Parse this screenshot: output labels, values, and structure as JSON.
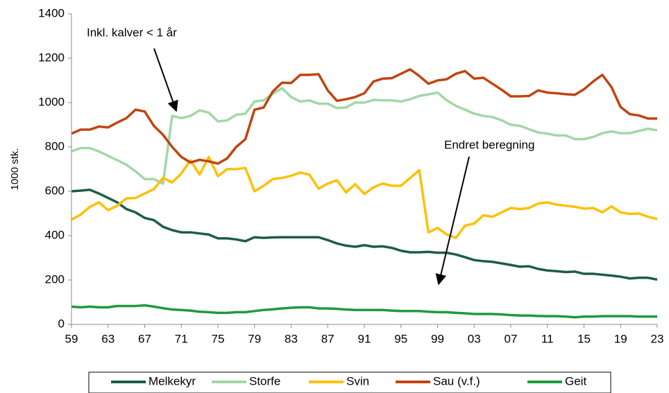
{
  "chart_data": {
    "type": "line",
    "y_label": "1000 stk.",
    "annotations": [
      "Inkl. kalver < 1 år",
      "Endret beregning"
    ],
    "categories": [
      "59",
      null,
      null,
      null,
      "63",
      null,
      null,
      null,
      "67",
      null,
      null,
      null,
      "71",
      null,
      null,
      null,
      "75",
      null,
      null,
      null,
      "79",
      null,
      null,
      null,
      "83",
      null,
      null,
      null,
      "87",
      null,
      null,
      null,
      "91",
      null,
      null,
      null,
      "95",
      null,
      null,
      null,
      "99",
      null,
      null,
      null,
      "03",
      null,
      null,
      null,
      "07",
      null,
      null,
      null,
      "11",
      null,
      null,
      null,
      "15",
      null,
      null,
      null,
      "19",
      null,
      null,
      null,
      "23"
    ],
    "ylim": [
      0,
      1400
    ],
    "yticks": [
      0,
      200,
      400,
      600,
      800,
      1000,
      1200,
      1400
    ],
    "series": [
      {
        "name": "Melkekyr",
        "color": "#1d5c47",
        "values": [
          600,
          603,
          607,
          590,
          570,
          550,
          520,
          505,
          480,
          470,
          440,
          425,
          415,
          415,
          410,
          405,
          388,
          388,
          383,
          375,
          393,
          390,
          392,
          393,
          393,
          393,
          393,
          393,
          380,
          365,
          355,
          350,
          357,
          350,
          352,
          345,
          332,
          325,
          325,
          327,
          323,
          323,
          315,
          303,
          290,
          285,
          282,
          275,
          268,
          260,
          262,
          250,
          243,
          240,
          236,
          238,
          228,
          228,
          224,
          220,
          215,
          207,
          210,
          210,
          202
        ]
      },
      {
        "name": "Storfe",
        "color": "#a3d6a7",
        "values": [
          780,
          795,
          795,
          780,
          760,
          740,
          720,
          690,
          655,
          655,
          635,
          940,
          930,
          940,
          965,
          955,
          915,
          920,
          945,
          950,
          1005,
          1010,
          1040,
          1065,
          1025,
          1005,
          1010,
          995,
          995,
          975,
          978,
          1000,
          1000,
          1012,
          1010,
          1010,
          1005,
          1015,
          1030,
          1037,
          1045,
          1010,
          985,
          968,
          950,
          940,
          935,
          920,
          900,
          895,
          880,
          865,
          860,
          852,
          852,
          835,
          835,
          845,
          862,
          870,
          862,
          862,
          872,
          882,
          875
        ]
      },
      {
        "name": "Svin",
        "color": "#ffc000",
        "values": [
          472,
          495,
          530,
          550,
          515,
          535,
          568,
          570,
          590,
          610,
          660,
          640,
          680,
          740,
          675,
          755,
          668,
          700,
          700,
          705,
          600,
          625,
          655,
          660,
          670,
          685,
          675,
          612,
          635,
          650,
          595,
          632,
          588,
          618,
          635,
          625,
          625,
          660,
          695,
          415,
          435,
          405,
          390,
          445,
          455,
          492,
          485,
          505,
          525,
          520,
          525,
          545,
          550,
          540,
          535,
          530,
          522,
          525,
          505,
          532,
          505,
          498,
          500,
          485,
          475
        ]
      },
      {
        "name": "Sau (v.f.)",
        "color": "#c0440f",
        "values": [
          860,
          878,
          878,
          892,
          888,
          910,
          930,
          968,
          960,
          895,
          855,
          800,
          755,
          730,
          742,
          735,
          725,
          748,
          800,
          835,
          968,
          978,
          1050,
          1090,
          1088,
          1125,
          1125,
          1128,
          1055,
          1008,
          1015,
          1025,
          1042,
          1095,
          1108,
          1110,
          1130,
          1150,
          1120,
          1085,
          1100,
          1105,
          1130,
          1142,
          1108,
          1112,
          1085,
          1058,
          1028,
          1028,
          1030,
          1055,
          1045,
          1042,
          1038,
          1035,
          1060,
          1095,
          1125,
          1070,
          980,
          948,
          942,
          928,
          928
        ]
      },
      {
        "name": "Geit",
        "color": "#1f9a3c",
        "values": [
          80,
          77,
          80,
          77,
          77,
          83,
          83,
          83,
          86,
          80,
          73,
          67,
          65,
          62,
          57,
          55,
          52,
          52,
          55,
          55,
          60,
          65,
          68,
          72,
          75,
          77,
          77,
          72,
          72,
          70,
          67,
          65,
          65,
          65,
          65,
          62,
          60,
          60,
          60,
          57,
          55,
          55,
          52,
          50,
          47,
          47,
          47,
          45,
          42,
          40,
          40,
          38,
          37,
          37,
          35,
          32,
          35,
          35,
          37,
          37,
          37,
          37,
          35,
          35,
          35
        ]
      }
    ]
  }
}
